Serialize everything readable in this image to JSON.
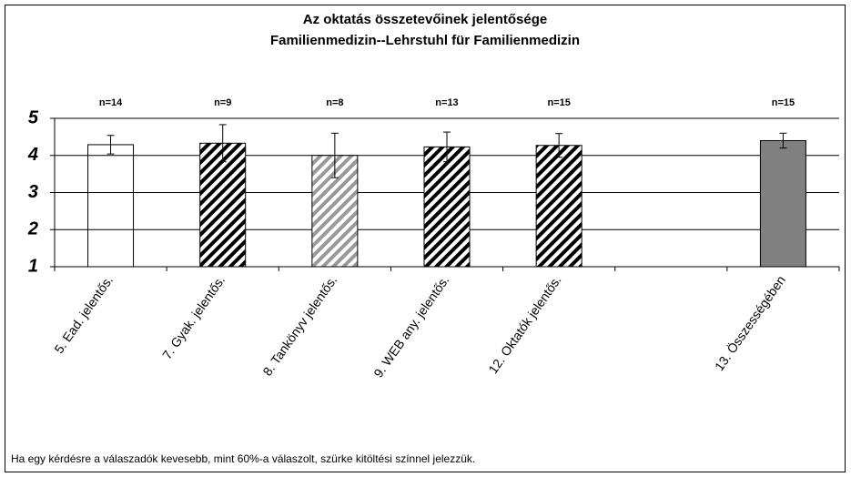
{
  "chart_data": {
    "type": "bar",
    "title": "Az oktatás összetevőinek jelentősége",
    "subtitle": "Familienmedizin--Lehrstuhl für Familienmedizin",
    "categories": [
      "5. Ead. jelentős.",
      "7. Gyak. jelentős.",
      "8. Tankönyv jelentős.",
      "9. WEB any. jelentős.",
      "12. Oktatók jelentős.",
      null,
      "13. Összességében"
    ],
    "values": [
      4.29,
      4.33,
      4.0,
      4.23,
      4.27,
      null,
      4.4
    ],
    "errors": [
      0.25,
      0.5,
      0.6,
      0.4,
      0.32,
      null,
      0.2
    ],
    "n_labels": [
      "n=14",
      "n=9",
      "n=8",
      "n=13",
      "n=15",
      null,
      "n=15"
    ],
    "colors": [
      "#000000",
      "#000000",
      "#999999",
      "#000000",
      "#000000",
      null,
      "#808080"
    ],
    "hatched": [
      true,
      true,
      true,
      true,
      true,
      null,
      false
    ],
    "ylim": [
      1,
      5
    ],
    "yticks": [
      1,
      2,
      3,
      4,
      5
    ],
    "grid": true,
    "footnote": "Ha egy kérdésre a válaszadók kevesebb, mint 60%-a válaszolt, szürke kitöltési színnel jelezzük."
  }
}
